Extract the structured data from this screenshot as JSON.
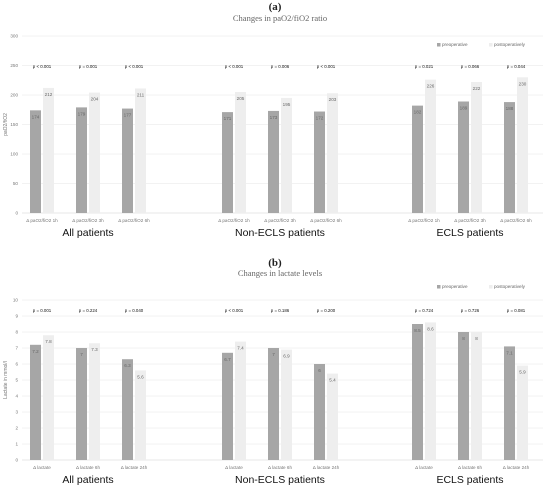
{
  "colors": {
    "pre": "#a6a6a6",
    "post": "#eeeeee"
  },
  "chart_data": [
    {
      "type": "bar",
      "panel": "(a)",
      "title": "Changes in paO2/fiO2 ratio",
      "ylabel": "paO2/fiO2",
      "ylim": [
        0,
        300
      ],
      "yticks": [
        "0",
        "50",
        "100",
        "150",
        "200",
        "250",
        "300"
      ],
      "legend_position": "top-right",
      "series_names": [
        "preoperative",
        "postoperatively"
      ],
      "groups": [
        {
          "label": "All patients",
          "items": [
            {
              "category": "Δ paO2/fiO2 1h",
              "pre": 174,
              "post": 212,
              "pre_label": "174",
              "post_label": "212",
              "p": "p < 0.001"
            },
            {
              "category": "Δ paO2/fiO2 3h",
              "pre": 179,
              "post": 204,
              "pre_label": "179",
              "post_label": "204",
              "p": "p = 0.001"
            },
            {
              "category": "Δ paO2/fiO2 6h",
              "pre": 177,
              "post": 211,
              "pre_label": "177",
              "post_label": "211",
              "p": "p < 0.001"
            }
          ]
        },
        {
          "label": "Non-ECLS patients",
          "items": [
            {
              "category": "Δ paO2/fiO2 1h",
              "pre": 171,
              "post": 205,
              "pre_label": "171",
              "post_label": "205",
              "p": "p < 0.001"
            },
            {
              "category": "Δ paO2/fiO2 3h",
              "pre": 173,
              "post": 195,
              "pre_label": "173",
              "post_label": "195",
              "p": "p = 0.006"
            },
            {
              "category": "Δ paO2/fiO2 6h",
              "pre": 172,
              "post": 203,
              "pre_label": "172",
              "post_label": "203",
              "p": "p < 0.001"
            }
          ]
        },
        {
          "label": "ECLS patients",
          "items": [
            {
              "category": "Δ paO2/fiO2 1h",
              "pre": 182,
              "post": 226,
              "pre_label": "182",
              "post_label": "226",
              "p": "p = 0.021"
            },
            {
              "category": "Δ paO2/fiO2 3h",
              "pre": 189,
              "post": 222,
              "pre_label": "189",
              "post_label": "222",
              "p": "p = 0.066"
            },
            {
              "category": "Δ paO2/fiO2 6h",
              "pre": 188,
              "post": 230,
              "pre_label": "188",
              "post_label": "230",
              "p": "p = 0.044"
            }
          ]
        }
      ]
    },
    {
      "type": "bar",
      "panel": "(b)",
      "title": "Changes in lactate levels",
      "ylabel": "Lactate in mmol/l",
      "ylim": [
        0,
        10
      ],
      "yticks": [
        "0",
        "1",
        "2",
        "3",
        "4",
        "5",
        "6",
        "7",
        "8",
        "9",
        "10"
      ],
      "legend_position": "top-right",
      "series_names": [
        "preoperative",
        "postoperatively"
      ],
      "groups": [
        {
          "label": "All patients",
          "items": [
            {
              "category": "Δ lactate",
              "pre": 7.2,
              "post": 7.8,
              "pre_label": "7.2",
              "post_label": "7.8",
              "p": "p = 0.001"
            },
            {
              "category": "Δ lactate 6h",
              "pre": 7.0,
              "post": 7.3,
              "pre_label": "7",
              "post_label": "7.3",
              "p": "p = 0.224"
            },
            {
              "category": "Δ lactate 24h",
              "pre": 6.3,
              "post": 5.6,
              "pre_label": "6.3",
              "post_label": "5.6",
              "p": "p = 0.040"
            }
          ]
        },
        {
          "label": "Non-ECLS patients",
          "items": [
            {
              "category": "Δ lactate",
              "pre": 6.7,
              "post": 7.4,
              "pre_label": "6.7",
              "post_label": "7.4",
              "p": "p < 0.001"
            },
            {
              "category": "Δ lactate 6h",
              "pre": 7.0,
              "post": 6.9,
              "pre_label": "7",
              "post_label": "6.9",
              "p": "p = 0.186"
            },
            {
              "category": "Δ lactate 24h",
              "pre": 6.0,
              "post": 5.4,
              "pre_label": "6",
              "post_label": "5.4",
              "p": "p = 0.200"
            }
          ]
        },
        {
          "label": "ECLS patients",
          "items": [
            {
              "category": "Δ lactate",
              "pre": 8.5,
              "post": 8.6,
              "pre_label": "8.5",
              "post_label": "8.6",
              "p": "p = 0.724"
            },
            {
              "category": "Δ lactate 6h",
              "pre": 8.0,
              "post": 8.0,
              "pre_label": "8",
              "post_label": "8",
              "p": "p = 0.726"
            },
            {
              "category": "Δ lactate 24h",
              "pre": 7.1,
              "post": 5.9,
              "pre_label": "7.1",
              "post_label": "5.9",
              "p": "p = 0.081"
            }
          ]
        }
      ]
    }
  ]
}
